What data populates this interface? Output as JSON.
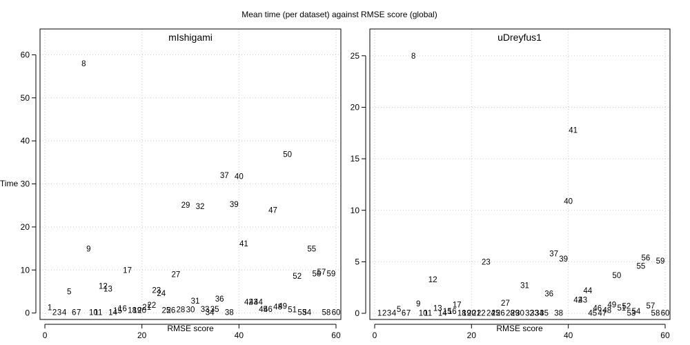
{
  "figure": {
    "title": "Mean time (per dataset) against RMSE score (global)",
    "ylabel": "Time"
  },
  "chart_data": [
    {
      "type": "scatter",
      "title": "mIshigami",
      "xlabel": "RMSE score",
      "ylabel": "Time",
      "xlim": [
        -1,
        61
      ],
      "ylim": [
        -1.5,
        66
      ],
      "xticks": [
        0,
        20,
        40,
        60
      ],
      "yticks": [
        0,
        10,
        20,
        30,
        40,
        50,
        60
      ],
      "grid": true,
      "points": [
        {
          "label": "1",
          "x": 1,
          "y": 1.3
        },
        {
          "label": "2",
          "x": 2,
          "y": 0.2
        },
        {
          "label": "3",
          "x": 3,
          "y": 0.2
        },
        {
          "label": "4",
          "x": 4,
          "y": 0.2
        },
        {
          "label": "5",
          "x": 5,
          "y": 5.0
        },
        {
          "label": "6",
          "x": 6,
          "y": 0.2
        },
        {
          "label": "7",
          "x": 7,
          "y": 0.2
        },
        {
          "label": "8",
          "x": 8,
          "y": 58.0
        },
        {
          "label": "9",
          "x": 9,
          "y": 14.9
        },
        {
          "label": "10",
          "x": 10,
          "y": 0.2
        },
        {
          "label": "11",
          "x": 11,
          "y": 0.2
        },
        {
          "label": "12",
          "x": 12,
          "y": 6.3
        },
        {
          "label": "13",
          "x": 13,
          "y": 5.6
        },
        {
          "label": "14",
          "x": 14,
          "y": 0.2
        },
        {
          "label": "15",
          "x": 15,
          "y": 0.6
        },
        {
          "label": "16",
          "x": 16,
          "y": 1.1
        },
        {
          "label": "17",
          "x": 17,
          "y": 10.0
        },
        {
          "label": "18",
          "x": 18,
          "y": 0.7
        },
        {
          "label": "19",
          "x": 19,
          "y": 0.7
        },
        {
          "label": "20",
          "x": 20,
          "y": 0.7
        },
        {
          "label": "21",
          "x": 21,
          "y": 1.4
        },
        {
          "label": "22",
          "x": 22,
          "y": 1.9
        },
        {
          "label": "23",
          "x": 23,
          "y": 5.3
        },
        {
          "label": "24",
          "x": 24,
          "y": 4.6
        },
        {
          "label": "25",
          "x": 25,
          "y": 0.7
        },
        {
          "label": "26",
          "x": 26,
          "y": 0.7
        },
        {
          "label": "27",
          "x": 27,
          "y": 9.0
        },
        {
          "label": "28",
          "x": 28,
          "y": 0.8
        },
        {
          "label": "29",
          "x": 29,
          "y": 25.1
        },
        {
          "label": "30",
          "x": 30,
          "y": 0.8
        },
        {
          "label": "31",
          "x": 31,
          "y": 2.8
        },
        {
          "label": "32",
          "x": 32,
          "y": 24.8
        },
        {
          "label": "33",
          "x": 33,
          "y": 0.9
        },
        {
          "label": "34",
          "x": 34,
          "y": 0.2
        },
        {
          "label": "35",
          "x": 35,
          "y": 0.9
        },
        {
          "label": "36",
          "x": 36,
          "y": 3.3
        },
        {
          "label": "37",
          "x": 37,
          "y": 32.0
        },
        {
          "label": "38",
          "x": 38,
          "y": 0.2
        },
        {
          "label": "39",
          "x": 39,
          "y": 25.3
        },
        {
          "label": "40",
          "x": 40,
          "y": 31.8
        },
        {
          "label": "41",
          "x": 41,
          "y": 16.1
        },
        {
          "label": "42",
          "x": 42,
          "y": 2.6
        },
        {
          "label": "43",
          "x": 43,
          "y": 2.6
        },
        {
          "label": "44",
          "x": 44,
          "y": 2.6
        },
        {
          "label": "45",
          "x": 45,
          "y": 0.9
        },
        {
          "label": "46",
          "x": 46,
          "y": 0.9
        },
        {
          "label": "47",
          "x": 47,
          "y": 23.9
        },
        {
          "label": "48",
          "x": 48,
          "y": 1.5
        },
        {
          "label": "49",
          "x": 49,
          "y": 1.6
        },
        {
          "label": "50",
          "x": 50,
          "y": 36.9
        },
        {
          "label": "51",
          "x": 51,
          "y": 0.8
        },
        {
          "label": "52",
          "x": 52,
          "y": 8.6
        },
        {
          "label": "53",
          "x": 53,
          "y": 0.2
        },
        {
          "label": "54",
          "x": 54,
          "y": 0.2
        },
        {
          "label": "55",
          "x": 55,
          "y": 14.9
        },
        {
          "label": "56",
          "x": 56,
          "y": 9.2
        },
        {
          "label": "57",
          "x": 57,
          "y": 9.6
        },
        {
          "label": "58",
          "x": 58,
          "y": 0.2
        },
        {
          "label": "59",
          "x": 59,
          "y": 9.2
        },
        {
          "label": "60",
          "x": 60,
          "y": 0.2
        }
      ]
    },
    {
      "type": "scatter",
      "title": "uDreyfus1",
      "xlabel": "RMSE score",
      "ylabel": "Time",
      "xlim": [
        -1,
        61
      ],
      "ylim": [
        -0.6,
        27.6
      ],
      "xticks": [
        0,
        20,
        40,
        60
      ],
      "yticks": [
        0,
        5,
        10,
        15,
        20,
        25
      ],
      "grid": true,
      "points": [
        {
          "label": "1",
          "x": 1,
          "y": 0.05
        },
        {
          "label": "2",
          "x": 2,
          "y": 0.05
        },
        {
          "label": "3",
          "x": 3,
          "y": 0.05
        },
        {
          "label": "4",
          "x": 4,
          "y": 0.05
        },
        {
          "label": "5",
          "x": 5,
          "y": 0.4
        },
        {
          "label": "6",
          "x": 6,
          "y": 0.05
        },
        {
          "label": "7",
          "x": 7,
          "y": 0.05
        },
        {
          "label": "8",
          "x": 8,
          "y": 25.0
        },
        {
          "label": "9",
          "x": 9,
          "y": 0.95
        },
        {
          "label": "10",
          "x": 10,
          "y": 0.05
        },
        {
          "label": "11",
          "x": 11,
          "y": 0.05
        },
        {
          "label": "12",
          "x": 12,
          "y": 3.3
        },
        {
          "label": "13",
          "x": 13,
          "y": 0.5
        },
        {
          "label": "14",
          "x": 14,
          "y": 0.05
        },
        {
          "label": "15",
          "x": 15,
          "y": 0.2
        },
        {
          "label": "16",
          "x": 16,
          "y": 0.2
        },
        {
          "label": "17",
          "x": 17,
          "y": 0.85
        },
        {
          "label": "18",
          "x": 18,
          "y": 0.05
        },
        {
          "label": "19",
          "x": 19,
          "y": 0.05
        },
        {
          "label": "20",
          "x": 20,
          "y": 0.05
        },
        {
          "label": "21",
          "x": 21,
          "y": 0.05
        },
        {
          "label": "22",
          "x": 22,
          "y": 0.05
        },
        {
          "label": "23",
          "x": 23,
          "y": 5.0
        },
        {
          "label": "24",
          "x": 24,
          "y": 0.05
        },
        {
          "label": "25",
          "x": 25,
          "y": 0.05
        },
        {
          "label": "26",
          "x": 26,
          "y": 0.05
        },
        {
          "label": "27",
          "x": 27,
          "y": 1.0
        },
        {
          "label": "28",
          "x": 28,
          "y": 0.05
        },
        {
          "label": "29",
          "x": 29,
          "y": 0.05
        },
        {
          "label": "30",
          "x": 30,
          "y": 0.05
        },
        {
          "label": "31",
          "x": 31,
          "y": 2.7
        },
        {
          "label": "32",
          "x": 32,
          "y": 0.05
        },
        {
          "label": "33",
          "x": 33,
          "y": 0.05
        },
        {
          "label": "34",
          "x": 34,
          "y": 0.05
        },
        {
          "label": "35",
          "x": 35,
          "y": 0.05
        },
        {
          "label": "36",
          "x": 36,
          "y": 1.9
        },
        {
          "label": "37",
          "x": 37,
          "y": 5.8
        },
        {
          "label": "38",
          "x": 38,
          "y": 0.05
        },
        {
          "label": "39",
          "x": 39,
          "y": 5.3
        },
        {
          "label": "40",
          "x": 40,
          "y": 10.9
        },
        {
          "label": "41",
          "x": 41,
          "y": 17.8
        },
        {
          "label": "42",
          "x": 42,
          "y": 1.3
        },
        {
          "label": "43",
          "x": 43,
          "y": 1.3
        },
        {
          "label": "44",
          "x": 44,
          "y": 2.2
        },
        {
          "label": "45",
          "x": 45,
          "y": 0.05
        },
        {
          "label": "46",
          "x": 46,
          "y": 0.5
        },
        {
          "label": "47",
          "x": 47,
          "y": 0.05
        },
        {
          "label": "48",
          "x": 48,
          "y": 0.3
        },
        {
          "label": "49",
          "x": 49,
          "y": 0.85
        },
        {
          "label": "50",
          "x": 50,
          "y": 3.7
        },
        {
          "label": "51",
          "x": 51,
          "y": 0.55
        },
        {
          "label": "52",
          "x": 52,
          "y": 0.7
        },
        {
          "label": "53",
          "x": 53,
          "y": 0.05
        },
        {
          "label": "54",
          "x": 54,
          "y": 0.2
        },
        {
          "label": "55",
          "x": 55,
          "y": 4.6
        },
        {
          "label": "56",
          "x": 56,
          "y": 5.4
        },
        {
          "label": "57",
          "x": 57,
          "y": 0.75
        },
        {
          "label": "58",
          "x": 58,
          "y": 0.05
        },
        {
          "label": "59",
          "x": 59,
          "y": 5.1
        },
        {
          "label": "60",
          "x": 60,
          "y": 0.05
        }
      ]
    }
  ]
}
